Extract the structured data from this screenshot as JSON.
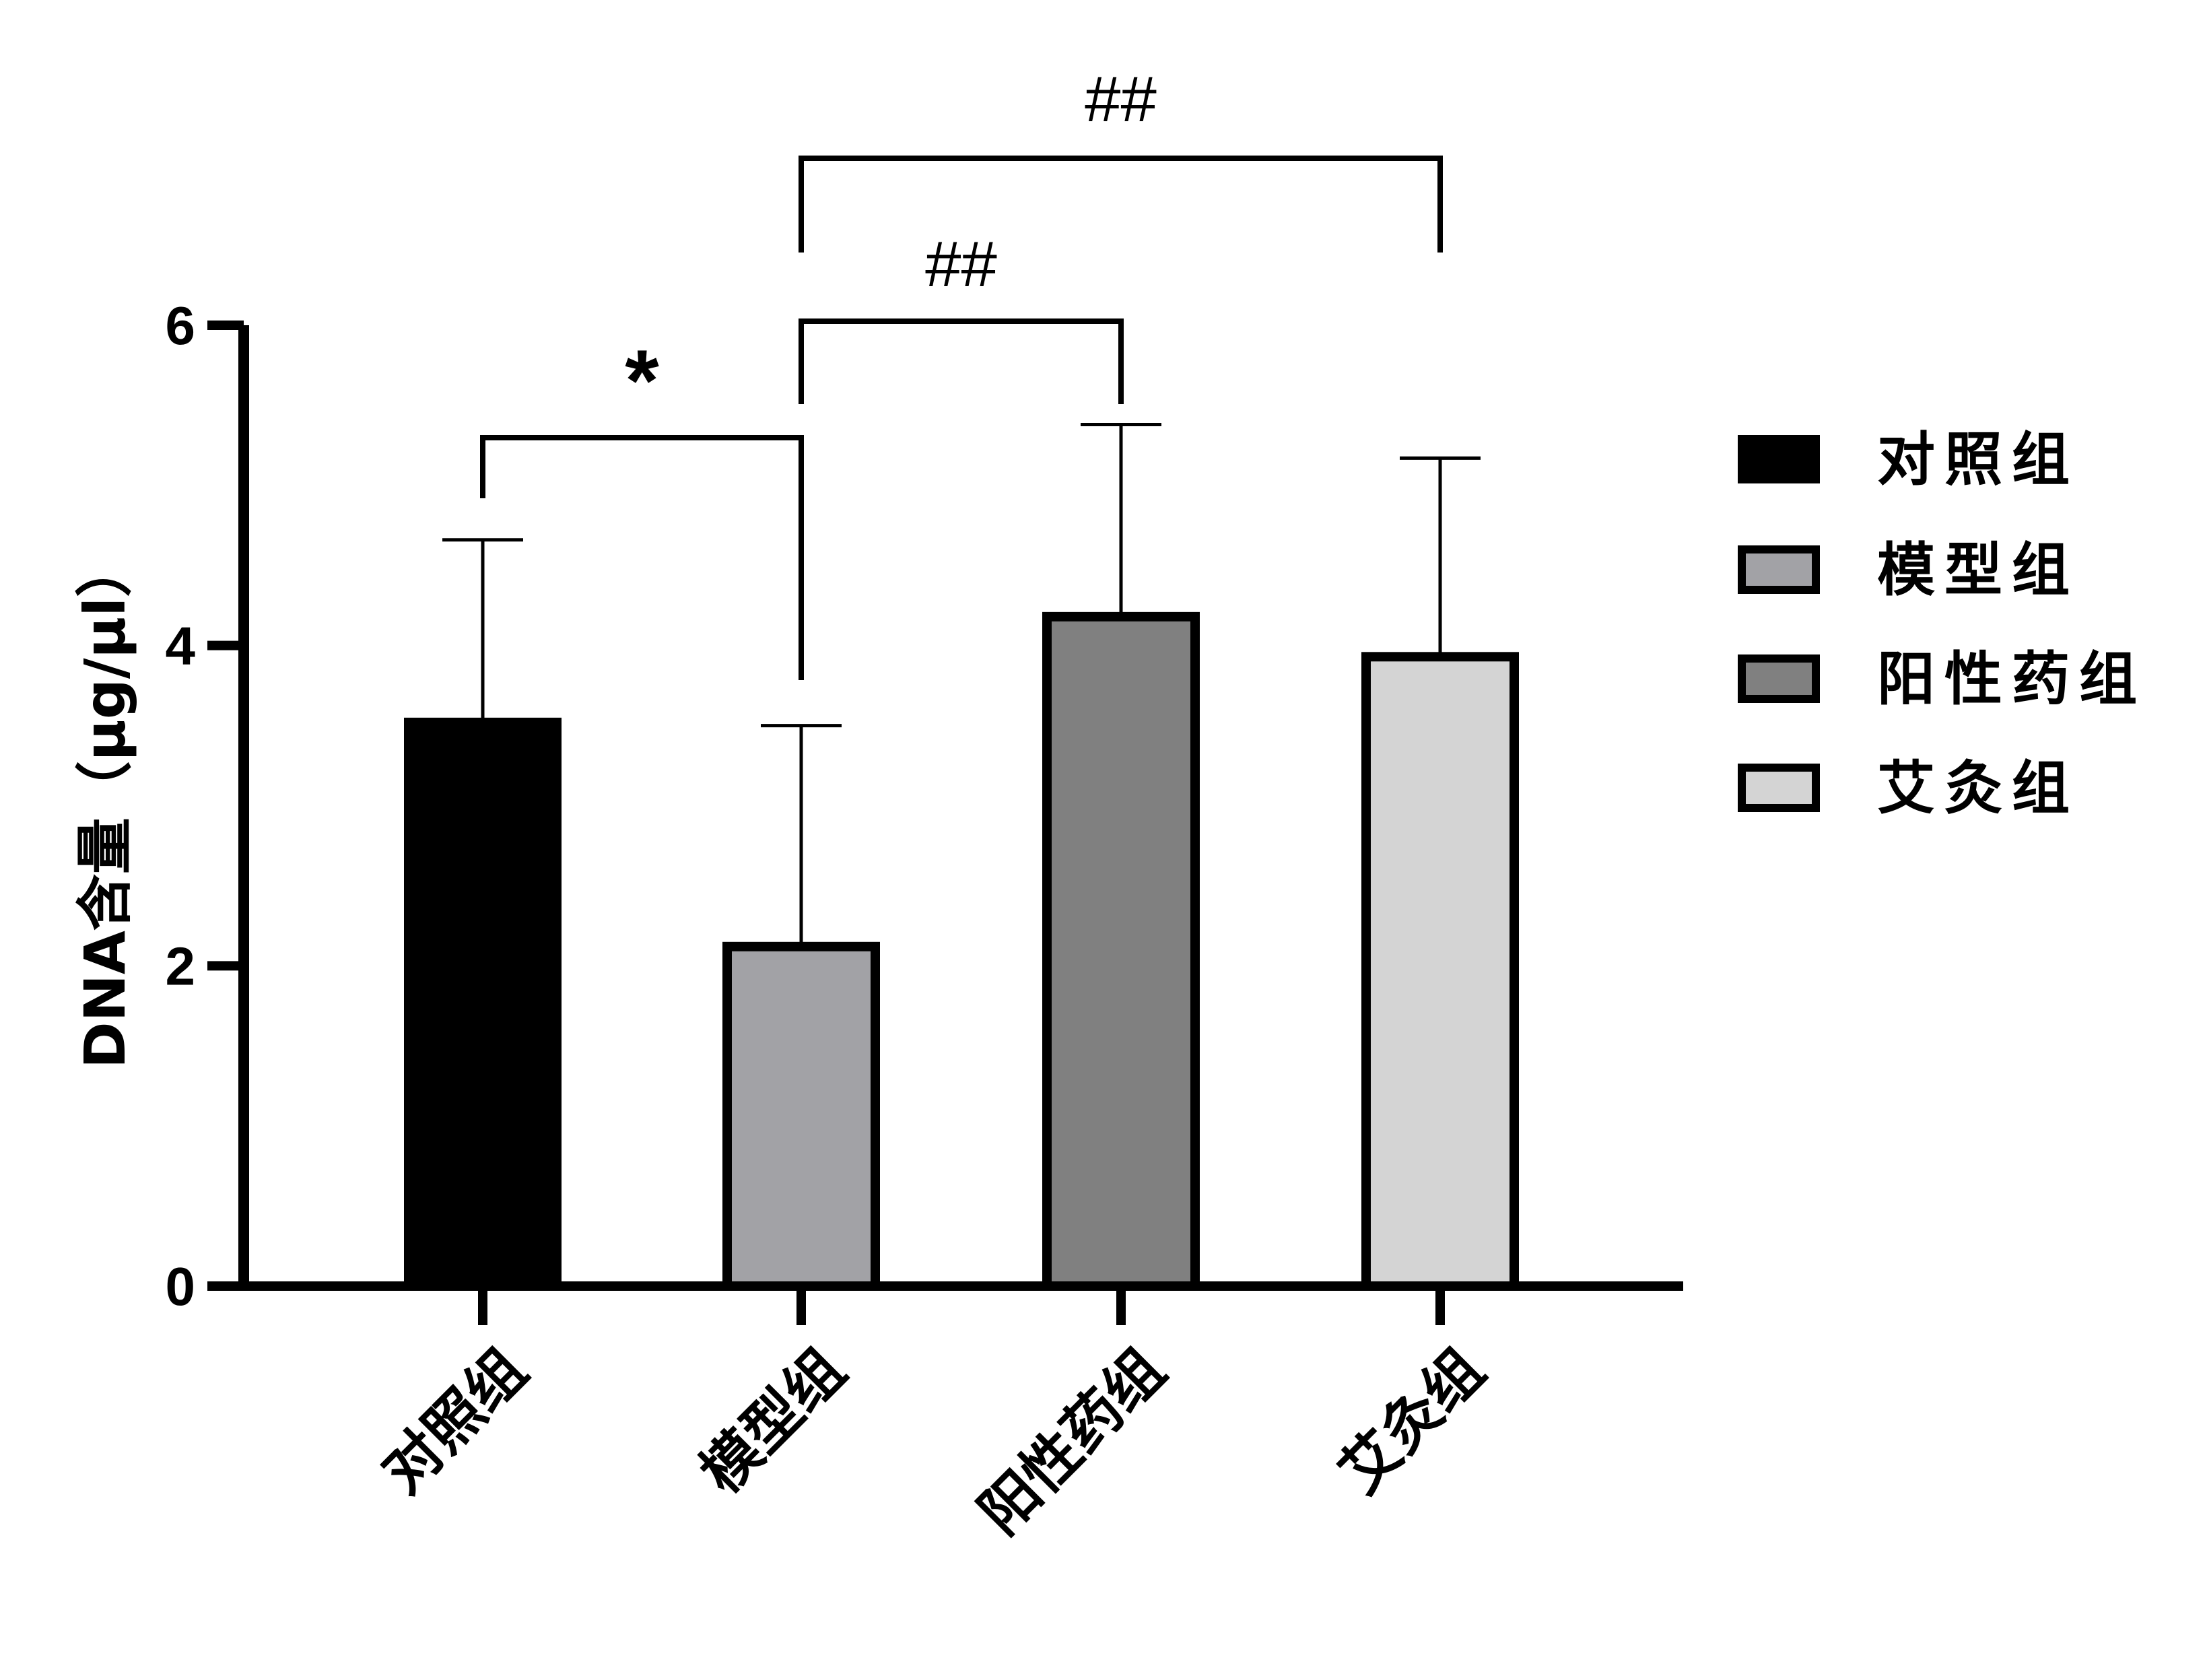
{
  "chart_data": {
    "type": "bar",
    "title": "",
    "xlabel": "",
    "ylabel": "DNA含量（μg/μl）",
    "ylim": [
      0,
      6
    ],
    "yticks": [
      "0",
      "2",
      "4",
      "6"
    ],
    "categories": [
      "对照组",
      "模型组",
      "阳性药组",
      "艾灸组"
    ],
    "values": [
      3.52,
      2.12,
      4.18,
      3.93
    ],
    "errors": [
      1.14,
      1.38,
      1.2,
      1.24
    ],
    "colors": [
      "#000000",
      "#a2a2a6",
      "#808080",
      "#d4d4d4"
    ],
    "legend": {
      "position": "right",
      "entries": [
        "对照组",
        "模型组",
        "阳性药组",
        "艾灸组"
      ]
    },
    "annotations": [
      {
        "from": 0,
        "to": 1,
        "label": "*"
      },
      {
        "from": 1,
        "to": 2,
        "label": "##"
      },
      {
        "from": 1,
        "to": 3,
        "label": "##"
      }
    ]
  }
}
